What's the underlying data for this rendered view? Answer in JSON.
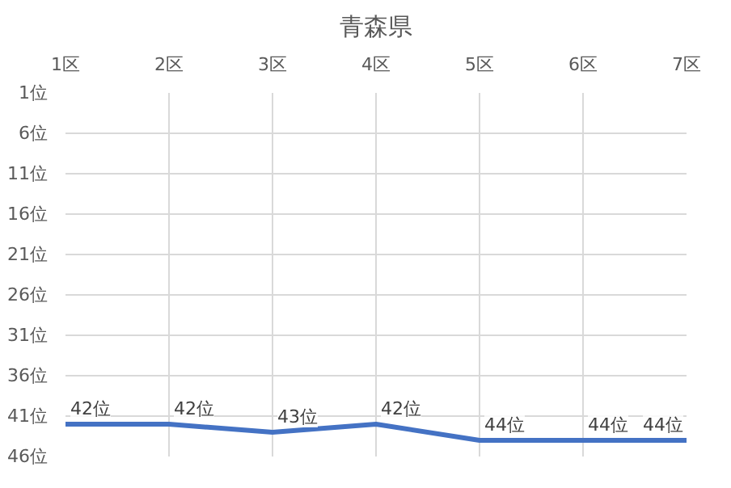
{
  "chart_data": {
    "type": "line",
    "title": "青森県",
    "categories": [
      "1区",
      "2区",
      "3区",
      "4区",
      "5区",
      "6区",
      "7区"
    ],
    "series": [
      {
        "color": "#4472c4",
        "values": [
          42,
          42,
          43,
          42,
          44,
          44,
          44
        ],
        "value_labels": [
          "42位",
          "42位",
          "43位",
          "42位",
          "44位",
          "44位",
          "44位"
        ]
      }
    ],
    "ylim": [
      46,
      1
    ],
    "yticks": [
      {
        "value": 1,
        "label": "1位"
      },
      {
        "value": 6,
        "label": "6位"
      },
      {
        "value": 11,
        "label": "11位"
      },
      {
        "value": 16,
        "label": "16位"
      },
      {
        "value": 21,
        "label": "21位"
      },
      {
        "value": 26,
        "label": "26位"
      },
      {
        "value": 31,
        "label": "31位"
      },
      {
        "value": 36,
        "label": "36位"
      },
      {
        "value": 41,
        "label": "41位"
      },
      {
        "value": 46,
        "label": "46位"
      }
    ],
    "grid": true,
    "line_style": "solid",
    "marker": "none"
  }
}
